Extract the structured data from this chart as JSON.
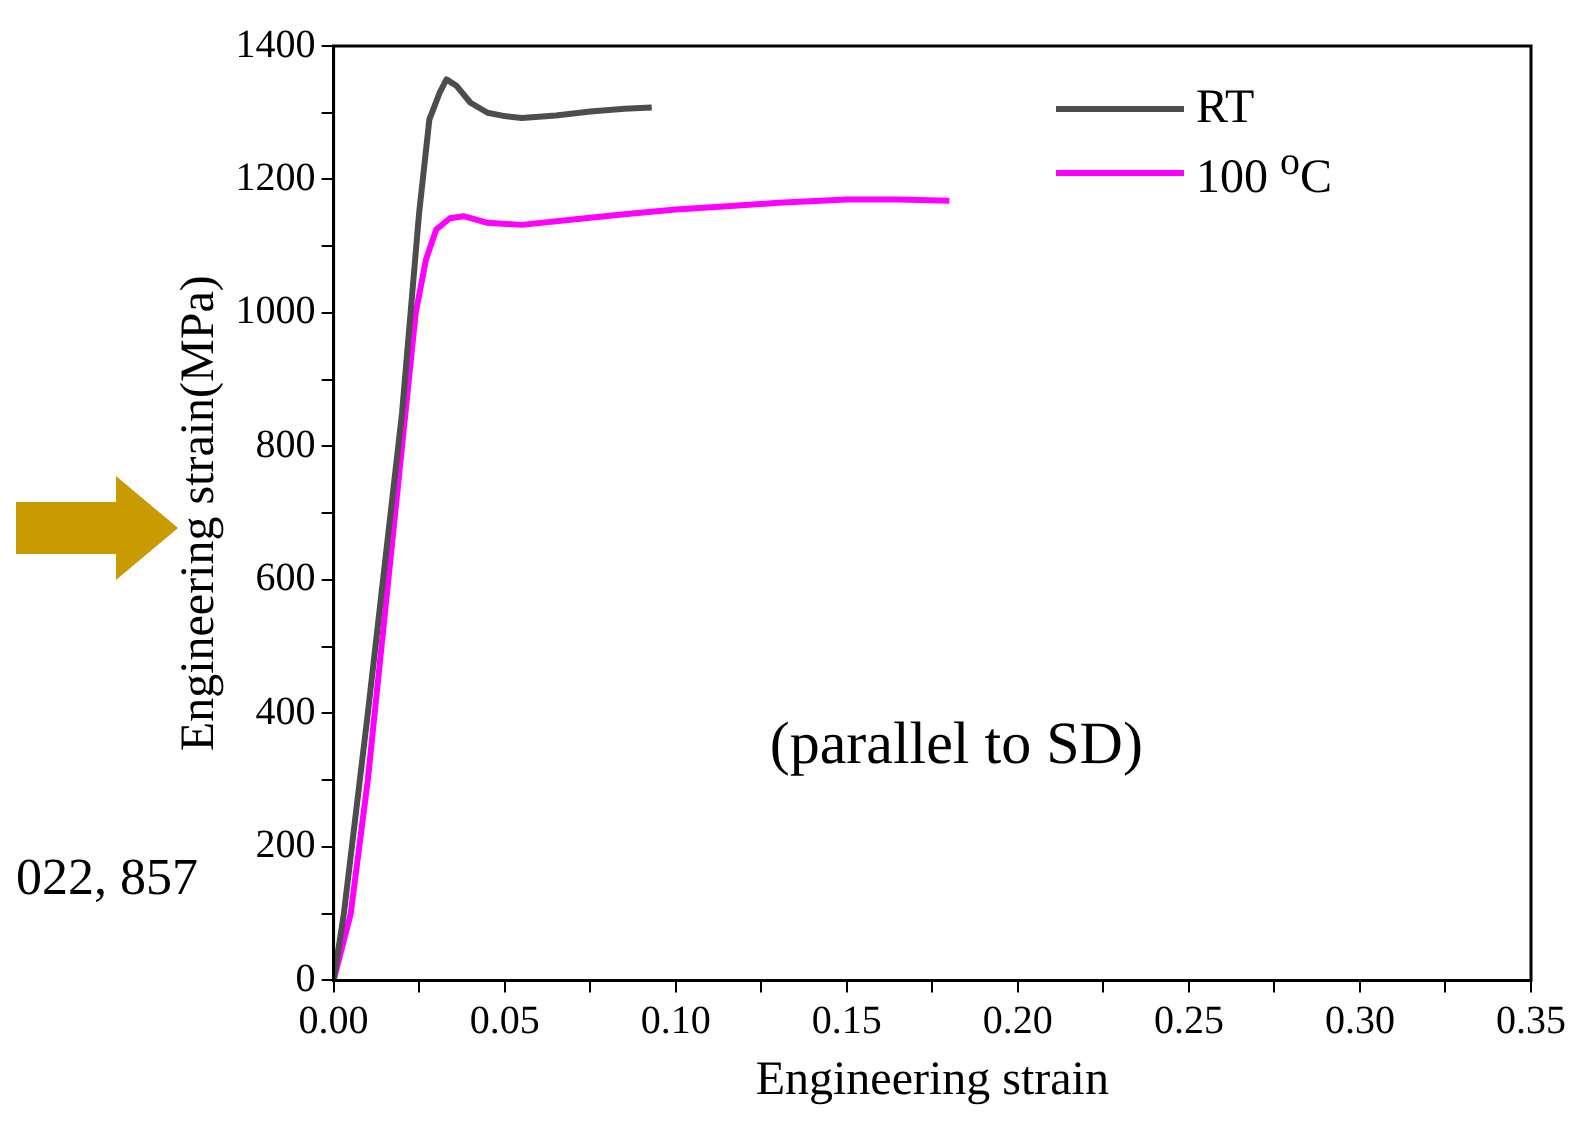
{
  "chart_data": {
    "type": "line",
    "xlabel": "Engineering strain",
    "ylabel": "Engineering strain(MPa)",
    "series": [
      {
        "name": "RT",
        "color": "#4d4d4d",
        "x": [
          0,
          0.003,
          0.01,
          0.02,
          0.025,
          0.028,
          0.031,
          0.033,
          0.036,
          0.04,
          0.045,
          0.05,
          0.055,
          0.065,
          0.075,
          0.085,
          0.093
        ],
        "values": [
          0,
          100,
          400,
          850,
          1150,
          1290,
          1330,
          1350,
          1340,
          1315,
          1300,
          1295,
          1292,
          1296,
          1302,
          1306,
          1308
        ]
      },
      {
        "name": "100 $^{o}$C",
        "color": "#ff00ff",
        "x": [
          0,
          0.005,
          0.01,
          0.015,
          0.02,
          0.024,
          0.027,
          0.03,
          0.034,
          0.038,
          0.045,
          0.055,
          0.07,
          0.085,
          0.1,
          0.115,
          0.13,
          0.15,
          0.165,
          0.18
        ],
        "values": [
          0,
          100,
          300,
          550,
          800,
          1000,
          1080,
          1125,
          1142,
          1145,
          1135,
          1132,
          1140,
          1148,
          1155,
          1160,
          1165,
          1170,
          1170,
          1168
        ]
      }
    ],
    "xlim": [
      0,
      0.35
    ],
    "xticks": [
      {
        "value": 0,
        "label": "0.00"
      },
      {
        "value": 0.025,
        "label": null
      },
      0.05,
      {
        "value": 0.075,
        "label": null
      },
      {
        "value": 0.1,
        "label": "0.10"
      },
      {
        "value": 0.125,
        "label": null
      },
      0.15,
      {
        "value": 0.175,
        "label": null
      },
      {
        "value": 0.2,
        "label": "0.20"
      },
      {
        "value": 0.225,
        "label": null
      },
      0.25,
      {
        "value": 0.275,
        "label": null
      },
      {
        "value": 0.3,
        "label": "0.30"
      },
      {
        "value": 0.325,
        "label": null
      },
      0.35
    ],
    "ylim": [
      0,
      1400
    ],
    "yticks": [
      0,
      {
        "value": 100,
        "label": null
      },
      200,
      {
        "value": 300,
        "label": null
      },
      400,
      {
        "value": 500,
        "label": null
      },
      600,
      {
        "value": 700,
        "label": null
      },
      800,
      {
        "value": 900,
        "label": null
      },
      1000,
      {
        "value": 1100,
        "label": null
      },
      1200,
      {
        "value": 1300,
        "label": null
      },
      1400
    ],
    "annotations": [
      "(parallel to SD)",
      "022, 857"
    ],
    "grid": false,
    "legend": "top right",
    "marker": "none",
    "line_style": "solid"
  }
}
